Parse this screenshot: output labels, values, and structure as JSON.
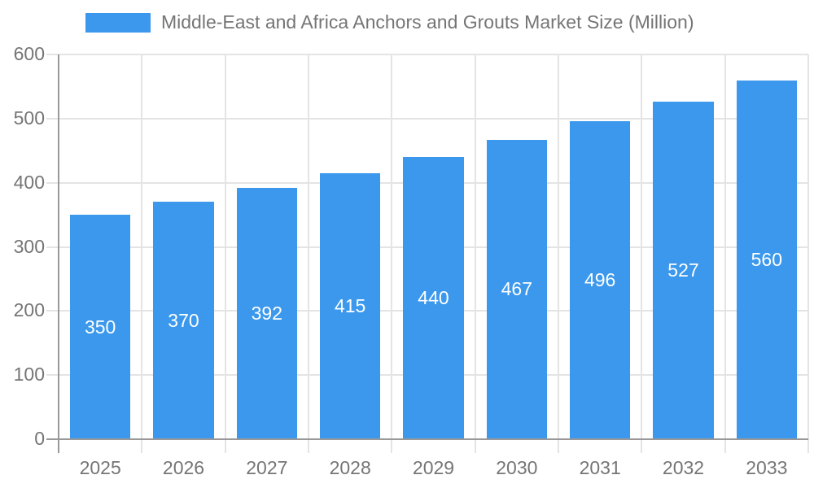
{
  "legend": {
    "position": "top"
  },
  "chart_data": {
    "type": "bar",
    "title": "Middle-East and Africa Anchors and Grouts Market Size (Million)",
    "categories": [
      "2025",
      "2026",
      "2027",
      "2028",
      "2029",
      "2030",
      "2031",
      "2032",
      "2033"
    ],
    "values": [
      350,
      370,
      392,
      415,
      440,
      467,
      496,
      527,
      560
    ],
    "xlabel": "",
    "ylabel": "",
    "ylim": [
      0,
      600
    ],
    "yticks": [
      0,
      100,
      200,
      300,
      400,
      500,
      600
    ],
    "grid": true,
    "legend_position": "top",
    "value_labels_inside_bars": true,
    "colors": {
      "bar": "#3b98ec",
      "bar_value_label": "#ffffff",
      "grid": "#e4e4e4",
      "axis": "#999999",
      "text": "#757575"
    }
  }
}
